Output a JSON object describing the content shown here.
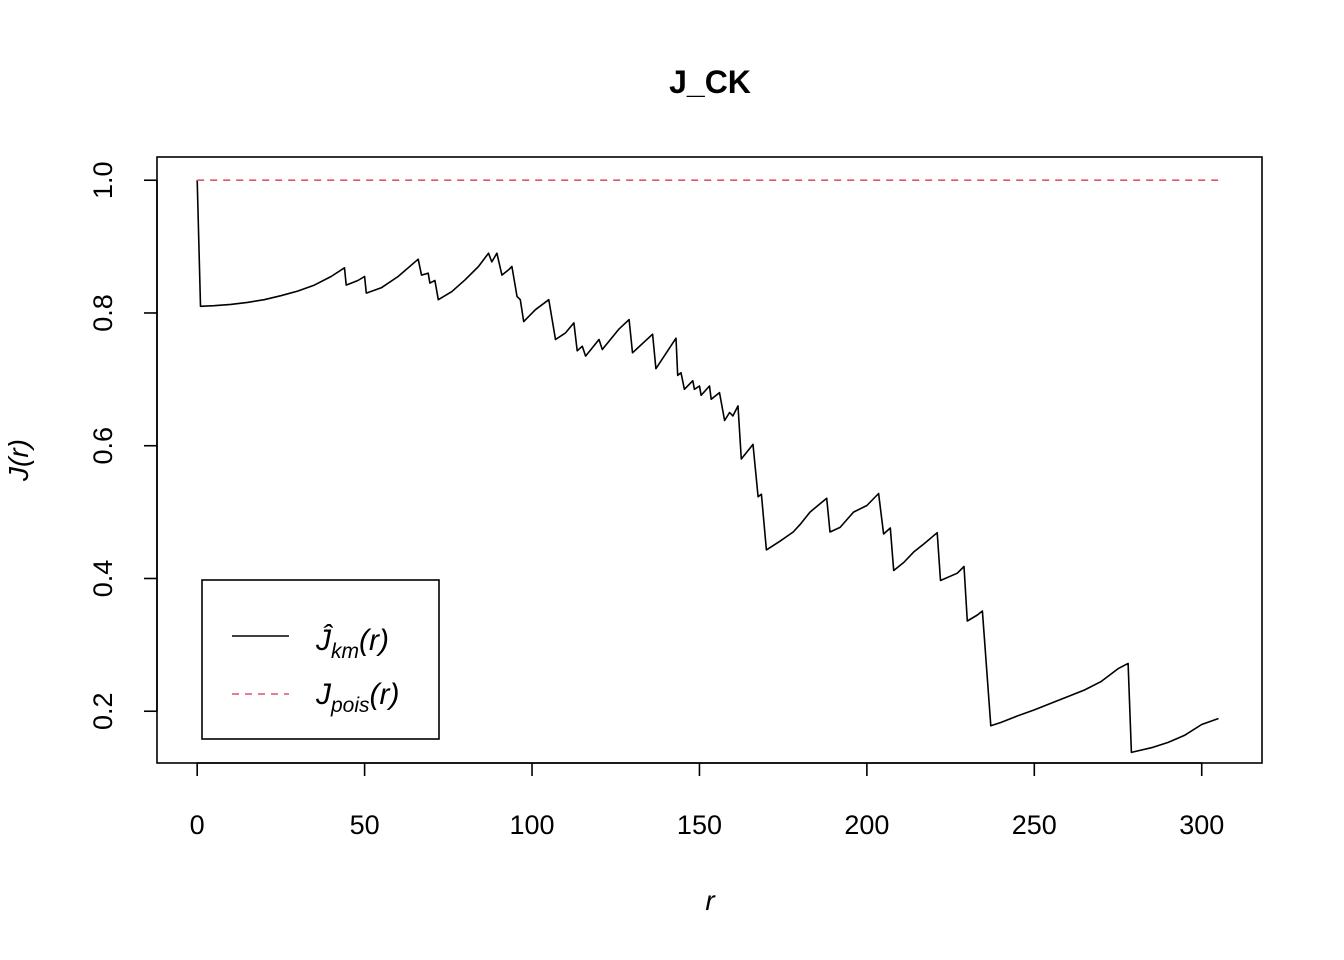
{
  "chart_data": {
    "type": "line",
    "title": "J_CK",
    "xlabel": "r",
    "ylabel": "J(r)",
    "xlim": [
      -12,
      318
    ],
    "ylim": [
      0.122,
      1.035
    ],
    "x_ticks": [
      0,
      50,
      100,
      150,
      200,
      250,
      300
    ],
    "y_ticks": [
      0.2,
      0.4,
      0.6,
      0.8,
      1.0
    ],
    "x_tick_labels": [
      "0",
      "50",
      "100",
      "150",
      "200",
      "250",
      "300"
    ],
    "y_tick_labels": [
      "0.2",
      "0.4",
      "0.6",
      "0.8",
      "1.0"
    ],
    "grid": false,
    "legend_position": "bottom-left",
    "series": [
      {
        "name": "Ĵkm(r)",
        "color": "#000000",
        "dash": "solid",
        "points": [
          [
            0,
            1.0
          ],
          [
            1,
            0.81
          ],
          [
            5,
            0.811
          ],
          [
            10,
            0.813
          ],
          [
            15,
            0.816
          ],
          [
            20,
            0.82
          ],
          [
            25,
            0.826
          ],
          [
            30,
            0.833
          ],
          [
            35,
            0.842
          ],
          [
            40,
            0.855
          ],
          [
            44,
            0.868
          ],
          [
            44.5,
            0.842
          ],
          [
            48,
            0.849
          ],
          [
            50,
            0.855
          ],
          [
            50.5,
            0.83
          ],
          [
            55,
            0.838
          ],
          [
            60,
            0.855
          ],
          [
            66,
            0.881
          ],
          [
            67,
            0.857
          ],
          [
            69,
            0.86
          ],
          [
            69.5,
            0.845
          ],
          [
            71,
            0.849
          ],
          [
            72,
            0.82
          ],
          [
            76,
            0.832
          ],
          [
            80,
            0.85
          ],
          [
            84,
            0.87
          ],
          [
            87,
            0.89
          ],
          [
            88,
            0.877
          ],
          [
            89.5,
            0.89
          ],
          [
            91,
            0.857
          ],
          [
            93,
            0.865
          ],
          [
            94,
            0.87
          ],
          [
            95.5,
            0.825
          ],
          [
            96.5,
            0.82
          ],
          [
            97.5,
            0.787
          ],
          [
            101,
            0.805
          ],
          [
            105,
            0.82
          ],
          [
            107,
            0.76
          ],
          [
            110,
            0.77
          ],
          [
            112.5,
            0.785
          ],
          [
            113.5,
            0.743
          ],
          [
            115,
            0.75
          ],
          [
            116,
            0.735
          ],
          [
            120,
            0.76
          ],
          [
            121,
            0.745
          ],
          [
            126,
            0.776
          ],
          [
            129,
            0.79
          ],
          [
            130,
            0.74
          ],
          [
            136,
            0.768
          ],
          [
            137,
            0.716
          ],
          [
            143,
            0.762
          ],
          [
            143.5,
            0.706
          ],
          [
            144.5,
            0.71
          ],
          [
            145.5,
            0.685
          ],
          [
            148,
            0.698
          ],
          [
            148.5,
            0.685
          ],
          [
            150,
            0.69
          ],
          [
            150.5,
            0.676
          ],
          [
            153,
            0.69
          ],
          [
            153.5,
            0.67
          ],
          [
            156,
            0.68
          ],
          [
            157.5,
            0.638
          ],
          [
            159,
            0.65
          ],
          [
            160,
            0.645
          ],
          [
            161.5,
            0.66
          ],
          [
            162.5,
            0.58
          ],
          [
            166,
            0.602
          ],
          [
            167.5,
            0.523
          ],
          [
            168.5,
            0.527
          ],
          [
            170,
            0.443
          ],
          [
            174,
            0.456
          ],
          [
            178,
            0.47
          ],
          [
            180,
            0.481
          ],
          [
            183,
            0.5
          ],
          [
            188,
            0.521
          ],
          [
            189,
            0.47
          ],
          [
            192,
            0.477
          ],
          [
            196,
            0.5
          ],
          [
            200,
            0.51
          ],
          [
            203.5,
            0.528
          ],
          [
            205,
            0.467
          ],
          [
            207,
            0.476
          ],
          [
            208,
            0.412
          ],
          [
            211,
            0.424
          ],
          [
            214,
            0.44
          ],
          [
            217,
            0.452
          ],
          [
            221,
            0.469
          ],
          [
            222,
            0.397
          ],
          [
            227,
            0.408
          ],
          [
            229,
            0.418
          ],
          [
            230,
            0.336
          ],
          [
            233,
            0.345
          ],
          [
            234.5,
            0.351
          ],
          [
            237,
            0.178
          ],
          [
            240,
            0.183
          ],
          [
            245,
            0.193
          ],
          [
            250,
            0.202
          ],
          [
            255,
            0.212
          ],
          [
            260,
            0.222
          ],
          [
            265,
            0.232
          ],
          [
            270,
            0.245
          ],
          [
            275,
            0.264
          ],
          [
            278,
            0.272
          ],
          [
            279,
            0.138
          ],
          [
            285,
            0.145
          ],
          [
            290,
            0.153
          ],
          [
            295,
            0.164
          ],
          [
            300,
            0.18
          ],
          [
            305,
            0.189
          ]
        ]
      },
      {
        "name": "Jpois(r)",
        "color": "#df536b",
        "dash": "dashed",
        "points": [
          [
            0,
            1.0
          ],
          [
            305,
            1.0
          ]
        ]
      }
    ]
  },
  "legend": {
    "items": [
      {
        "base": "Ĵ",
        "sub": "km",
        "tail": "(r)"
      },
      {
        "base": "J",
        "sub": "pois",
        "tail": "(r)"
      }
    ]
  }
}
